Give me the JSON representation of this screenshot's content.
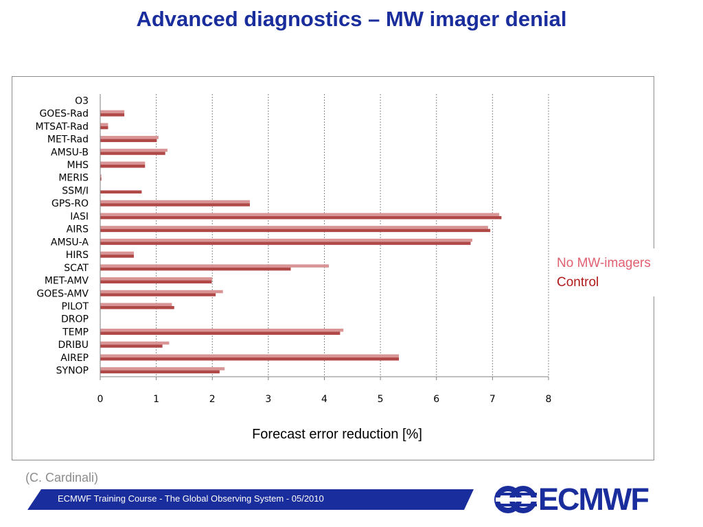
{
  "slide": {
    "title": "Advanced diagnostics – MW imager denial",
    "source_note": "(C. Cardinali)",
    "footer_text": "ECMWF Training Course - The Global Observing System - 05/2010",
    "logo_text": "ECMWF"
  },
  "legend": {
    "items": [
      {
        "label": "No MW-imagers",
        "color": "#e06070"
      },
      {
        "label": "Control",
        "color": "#b01a1a"
      }
    ]
  },
  "chart_data": {
    "type": "bar",
    "orientation": "horizontal",
    "xlabel": "Forecast error reduction [%]",
    "ylabel": "",
    "xlim": [
      0,
      8
    ],
    "x_ticks": [
      "0",
      "1",
      "2",
      "3",
      "4",
      "5",
      "6",
      "7",
      "8"
    ],
    "grid": "vertical dashed",
    "legend_position": "right",
    "categories": [
      "O3",
      "GOES-Rad",
      "MTSAT-Rad",
      "MET-Rad",
      "AMSU-B",
      "MHS",
      "MERIS",
      "SSM/I",
      "GPS-RO",
      "IASI",
      "AIRS",
      "AMSU-A",
      "HIRS",
      "SCAT",
      "MET-AMV",
      "GOES-AMV",
      "PILOT",
      "DROP",
      "TEMP",
      "DRIBU",
      "AIREP",
      "SYNOP"
    ],
    "series": [
      {
        "name": "No MW-imagers",
        "color": "#d99595",
        "values": [
          0,
          0.43,
          0.14,
          1.04,
          1.2,
          0.8,
          0.02,
          0,
          2.67,
          7.12,
          6.92,
          6.64,
          0.6,
          4.08,
          2.0,
          2.19,
          1.28,
          0,
          4.34,
          1.23,
          5.33,
          2.22
        ]
      },
      {
        "name": "Control",
        "color": "#b04848",
        "values": [
          0,
          0.43,
          0.14,
          1.01,
          1.16,
          0.8,
          0.02,
          0.74,
          2.67,
          7.16,
          6.96,
          6.61,
          0.6,
          3.4,
          1.99,
          2.06,
          1.32,
          0,
          4.28,
          1.11,
          5.33,
          2.13
        ]
      }
    ]
  }
}
